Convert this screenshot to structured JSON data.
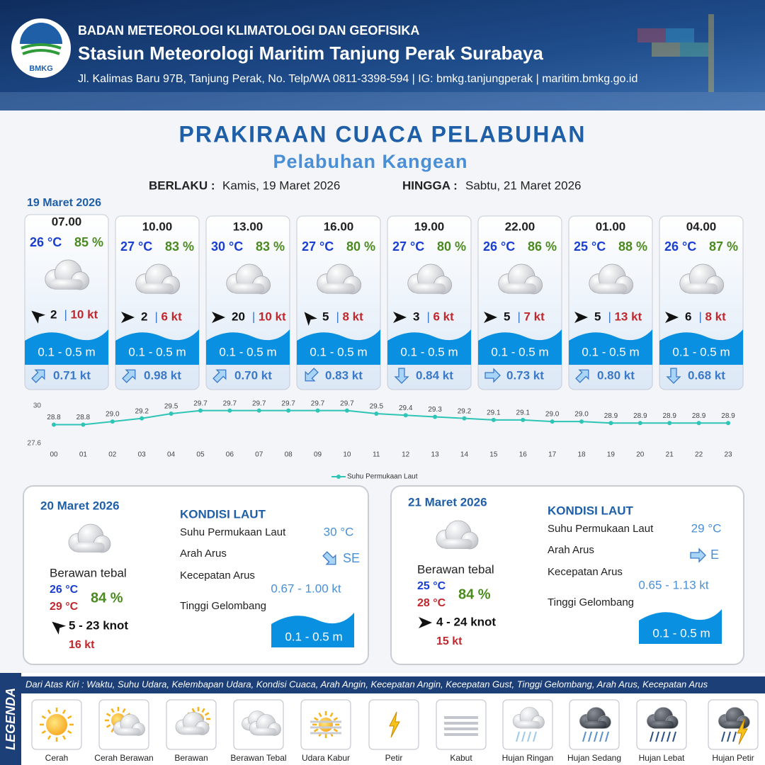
{
  "header": {
    "logo": "BMKG",
    "agency": "BADAN METEOROLOGI KLIMATOLOGI DAN GEOFISIKA",
    "station": "Stasiun Meteorologi Maritim Tanjung Perak Surabaya",
    "address": "Jl. Kalimas Baru 97B, Tanjung Perak, No. Telp/WA 0811-3398-594 | IG: bmkg.tanjungperak | maritim.bmkg.go.id"
  },
  "title": "PRAKIRAAN CUACA PELABUHAN",
  "subtitle": "Pelabuhan Kangean",
  "validity": {
    "from_label": "BERLAKU :",
    "from": "Kamis, 19 Maret 2026",
    "to_label": "HINGGA :",
    "to": "Sabtu, 21 Maret 2026"
  },
  "separator": "|",
  "today": {
    "date": "19 Maret 2026",
    "slots": [
      {
        "time": "07.00",
        "temp": "26 °C",
        "humidity": "85 %",
        "wind": "2",
        "gust": "10 kt",
        "wave": "0.1 - 0.5 m",
        "current": "0.71 kt"
      },
      {
        "time": "10.00",
        "temp": "27 °C",
        "humidity": "83 %",
        "wind": "2",
        "gust": "6 kt",
        "wave": "0.1 - 0.5 m",
        "current": "0.98 kt"
      },
      {
        "time": "13.00",
        "temp": "30 °C",
        "humidity": "83 %",
        "wind": "20",
        "gust": "10 kt",
        "wave": "0.1 - 0.5 m",
        "current": "0.70 kt"
      },
      {
        "time": "16.00",
        "temp": "27 °C",
        "humidity": "80 %",
        "wind": "5",
        "gust": "8 kt",
        "wave": "0.1 - 0.5 m",
        "current": "0.83 kt"
      },
      {
        "time": "19.00",
        "temp": "27 °C",
        "humidity": "80 %",
        "wind": "3",
        "gust": "6 kt",
        "wave": "0.1 - 0.5 m",
        "current": "0.84 kt"
      },
      {
        "time": "22.00",
        "temp": "26 °C",
        "humidity": "86 %",
        "wind": "5",
        "gust": "7 kt",
        "wave": "0.1 - 0.5 m",
        "current": "0.73 kt"
      },
      {
        "time": "01.00",
        "temp": "25 °C",
        "humidity": "88 %",
        "wind": "5",
        "gust": "13 kt",
        "wave": "0.1 - 0.5 m",
        "current": "0.80 kt"
      },
      {
        "time": "04.00",
        "temp": "26 °C",
        "humidity": "87 %",
        "wind": "6",
        "gust": "8 kt",
        "wave": "0.1 - 0.5 m",
        "current": "0.68 kt"
      }
    ]
  },
  "chart_data": {
    "type": "line",
    "categories": [
      "00",
      "01",
      "02",
      "03",
      "04",
      "05",
      "06",
      "07",
      "08",
      "09",
      "10",
      "11",
      "12",
      "13",
      "14",
      "15",
      "16",
      "17",
      "18",
      "19",
      "20",
      "21",
      "22",
      "23"
    ],
    "series": [
      {
        "name": "Suhu Permukaan Laut",
        "color": "#2ec4b6",
        "values": [
          28.8,
          28.8,
          29.0,
          29.2,
          29.5,
          29.7,
          29.7,
          29.7,
          29.7,
          29.7,
          29.7,
          29.5,
          29.4,
          29.3,
          29.2,
          29.1,
          29.1,
          29.0,
          29.0,
          28.9,
          28.9,
          28.9,
          28.9,
          28.9
        ],
        "value_labels": [
          "28.8",
          "28.8",
          "29.0",
          "29.2",
          "29.5",
          "29.7",
          "29.7",
          "29.7",
          "29.7",
          "29.7",
          "29.7",
          "29.5",
          "29.4",
          "29.3",
          "29.2",
          "29.1",
          "29.1",
          "29.0",
          "29.0",
          "28.9",
          "28.9",
          "28.9",
          "28.9",
          "28.9"
        ]
      }
    ],
    "ylim": [
      27.6,
      30
    ],
    "yticks": [
      27.6,
      30
    ],
    "legend": "bottom"
  },
  "days": [
    {
      "date": "20 Maret 2026",
      "heading": "KONDISI LAUT",
      "condition": "Berawan tebal",
      "temp_min": "26 °C",
      "temp_max": "29 °C",
      "humidity": "84 %",
      "wind": "5  - 23 knot",
      "gust": "16 kt",
      "sea": [
        {
          "label": "Suhu Permukaan Laut",
          "value": "30 °C"
        },
        {
          "label": "Arah Arus",
          "value": "SE"
        },
        {
          "label": "Kecepatan Arus",
          "value": "0.67  - 1.00 kt"
        },
        {
          "label": "Tinggi Gelombang",
          "value": "0.1 - 0.5 m"
        }
      ]
    },
    {
      "date": "21 Maret 2026",
      "heading": "KONDISI LAUT",
      "condition": "Berawan tebal",
      "temp_min": "25 °C",
      "temp_max": "28 °C",
      "humidity": "84 %",
      "wind": "4  - 24 knot",
      "gust": "15 kt",
      "sea": [
        {
          "label": "Suhu Permukaan Laut",
          "value": "29 °C"
        },
        {
          "label": "Arah Arus",
          "value": "E"
        },
        {
          "label": "Kecepatan Arus",
          "value": "0.65 - 1.13 kt"
        },
        {
          "label": "Tinggi Gelombang",
          "value": "0.1 - 0.5 m"
        }
      ]
    }
  ],
  "legend": {
    "title": "LEGENDA",
    "description": "Dari Atas Kiri : Waktu, Suhu Udara, Kelembapan Udara, Kondisi Cuaca, Arah Angin, Kecepatan Angin, Kecepatan Gust, Tinggi Gelombang, Arah Arus, Kecepatan Arus",
    "items": [
      "Cerah",
      "Cerah Berawan",
      "Berawan",
      "Berawan Tebal",
      "Udara Kabur",
      "Petir",
      "Kabut",
      "Hujan Ringan",
      "Hujan Sedang",
      "Hujan Lebat",
      "Hujan Petir"
    ]
  }
}
